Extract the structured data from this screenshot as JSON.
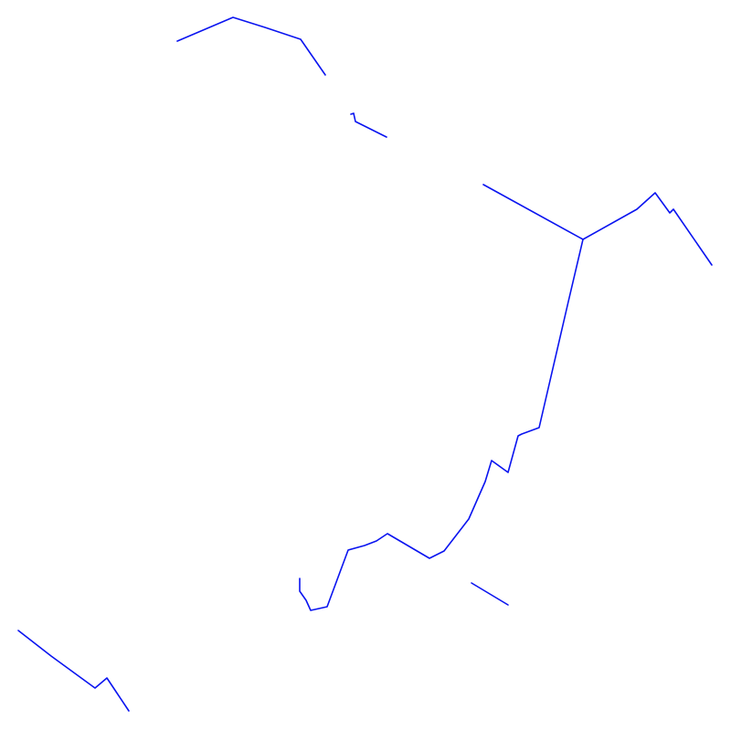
{
  "map": {
    "background_color": "#ffffff",
    "line_color": "#0a14f0",
    "feature_type": "polyline segments"
  }
}
